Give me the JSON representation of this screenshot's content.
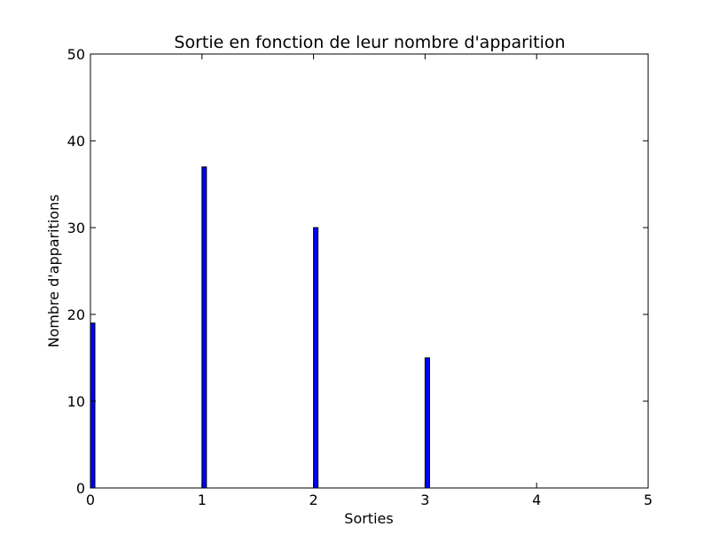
{
  "chart_data": {
    "type": "bar",
    "title": "Sortie en fonction de leur nombre d'apparition",
    "xlabel": "Sorties",
    "ylabel": "Nombre d'apparitions",
    "x": [
      0,
      1,
      2,
      3
    ],
    "values": [
      19,
      37,
      30,
      15
    ],
    "xlim": [
      0,
      5
    ],
    "ylim": [
      0,
      50
    ],
    "xticks": [
      0,
      1,
      2,
      3,
      4,
      5
    ],
    "yticks": [
      0,
      10,
      20,
      30,
      40,
      50
    ],
    "xtick_labels": [
      "0",
      "1",
      "2",
      "3",
      "4",
      "5"
    ],
    "ytick_labels": [
      "0",
      "10",
      "20",
      "30",
      "40",
      "50"
    ],
    "bar_width": 0.04,
    "grid": false,
    "colors": {
      "bar_fill": "#0000ff",
      "bar_edge": "#000000",
      "axes": "#000000",
      "background": "#ffffff"
    }
  }
}
